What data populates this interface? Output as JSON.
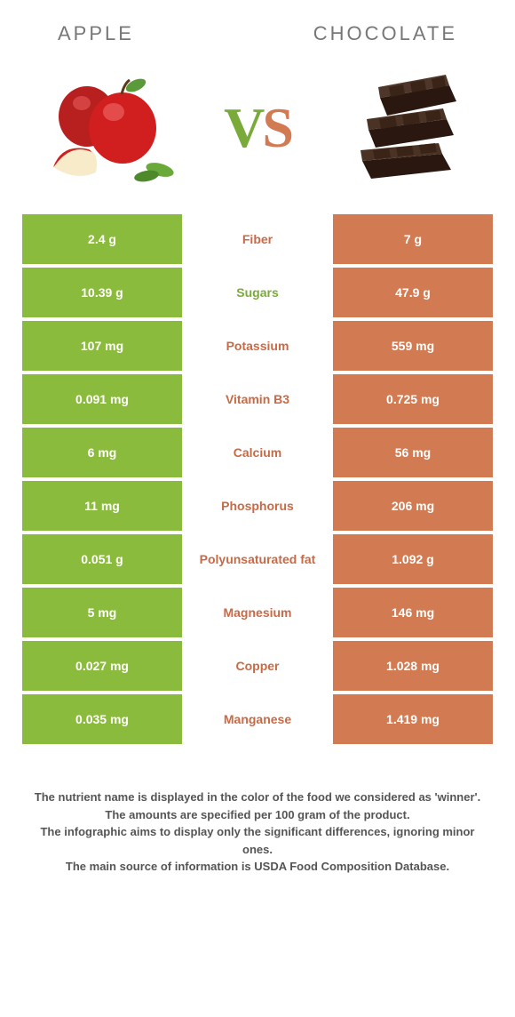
{
  "header": {
    "left_title": "APPLE",
    "right_title": "CHOCOLATE",
    "vs_v": "V",
    "vs_s": "S"
  },
  "colors": {
    "left_bg": "#8bbb3d",
    "right_bg": "#d27a52",
    "left_label": "#7aab3a",
    "right_label": "#c76a45",
    "text": "#555555"
  },
  "rows": [
    {
      "label": "Fiber",
      "left": "2.4 g",
      "right": "7 g",
      "winner": "right"
    },
    {
      "label": "Sugars",
      "left": "10.39 g",
      "right": "47.9 g",
      "winner": "left"
    },
    {
      "label": "Potassium",
      "left": "107 mg",
      "right": "559 mg",
      "winner": "right"
    },
    {
      "label": "Vitamin B3",
      "left": "0.091 mg",
      "right": "0.725 mg",
      "winner": "right"
    },
    {
      "label": "Calcium",
      "left": "6 mg",
      "right": "56 mg",
      "winner": "right"
    },
    {
      "label": "Phosphorus",
      "left": "11 mg",
      "right": "206 mg",
      "winner": "right"
    },
    {
      "label": "Polyunsaturated fat",
      "left": "0.051 g",
      "right": "1.092 g",
      "winner": "right"
    },
    {
      "label": "Magnesium",
      "left": "5 mg",
      "right": "146 mg",
      "winner": "right"
    },
    {
      "label": "Copper",
      "left": "0.027 mg",
      "right": "1.028 mg",
      "winner": "right"
    },
    {
      "label": "Manganese",
      "left": "0.035 mg",
      "right": "1.419 mg",
      "winner": "right"
    }
  ],
  "footnotes": [
    "The nutrient name is displayed in the color of the food we considered as 'winner'.",
    "The amounts are specified per 100 gram of the product.",
    "The infographic aims to display only the significant differences, ignoring minor ones.",
    "The main source of information is USDA Food Composition Database."
  ]
}
